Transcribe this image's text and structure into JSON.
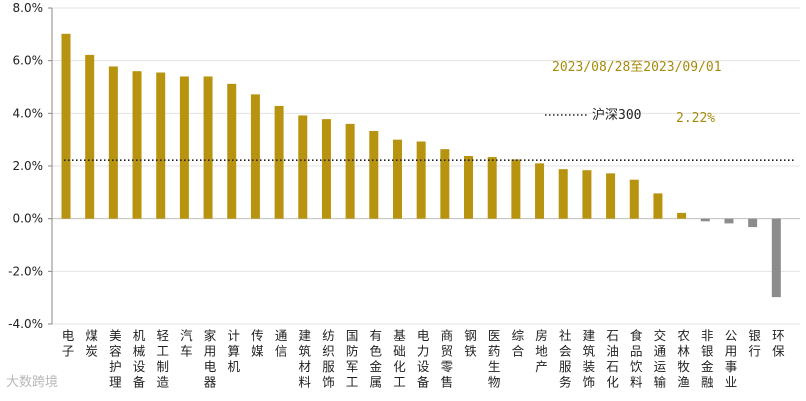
{
  "chart_data": {
    "type": "bar",
    "period_label": "2023/08/28至2023/09/01",
    "categories": [
      "电子",
      "煤炭",
      "美容护理",
      "机械设备",
      "轻工制造",
      "汽车",
      "家用电器",
      "计算机",
      "传媒",
      "通信",
      "建筑材料",
      "纺织服饰",
      "国防军工",
      "有色金属",
      "基础化工",
      "电力设备",
      "商贸零售",
      "钢铁",
      "医药生物",
      "综合",
      "房地产",
      "社会服务",
      "建筑装饰",
      "石油石化",
      "食品饮料",
      "交通运输",
      "农林牧渔",
      "非银金融",
      "公用事业",
      "银行",
      "环保"
    ],
    "values": [
      7.02,
      6.22,
      5.78,
      5.6,
      5.55,
      5.4,
      5.4,
      5.12,
      4.72,
      4.28,
      3.92,
      3.78,
      3.6,
      3.33,
      3.0,
      2.93,
      2.64,
      2.38,
      2.34,
      2.25,
      2.1,
      1.88,
      1.84,
      1.72,
      1.48,
      0.96,
      0.22,
      -0.1,
      -0.18,
      -0.32,
      -2.98
    ],
    "reference": {
      "name": "沪深300",
      "value": 2.22,
      "value_label": "2.22%"
    },
    "yticks": [
      "8.0%",
      "6.0%",
      "4.0%",
      "2.0%",
      "0.0%",
      "-2.0%",
      "-4.0%"
    ],
    "ylim": [
      -4,
      8
    ],
    "colors": {
      "positive": "#b8930f",
      "negative": "#8c8c8c",
      "reference_line": "#222222",
      "annotation": "#a88a0c"
    },
    "watermark": "大数跨境"
  }
}
